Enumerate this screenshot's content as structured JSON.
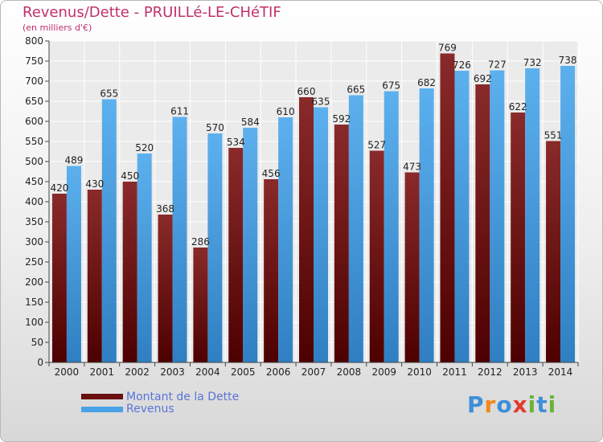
{
  "title": "Revenus/Dette - PRUILLé-LE-CHéTIF",
  "unit_label": "(en milliers d'€)",
  "brand": {
    "name": "Proxiti",
    "letters": [
      "P",
      "r",
      "o",
      "x",
      "i",
      "t",
      "i"
    ],
    "letter_colors": [
      "#3d8fd8",
      "#f08a1c",
      "#3d8fd8",
      "#e23b2e",
      "#6bb338",
      "#3d8fd8",
      "#6bb338"
    ]
  },
  "colors": {
    "dette": "#7a1a1a",
    "revenus": "#4aa3e6",
    "title": "#c0306a",
    "legend_text": "#5a74d8"
  },
  "chart_data": {
    "type": "bar",
    "categories": [
      "2000",
      "2001",
      "2002",
      "2003",
      "2004",
      "2005",
      "2006",
      "2007",
      "2008",
      "2009",
      "2010",
      "2011",
      "2012",
      "2013",
      "2014"
    ],
    "series": [
      {
        "name": "Montant de la Dette",
        "values": [
          420,
          430,
          450,
          368,
          286,
          534,
          456,
          660,
          592,
          527,
          473,
          769,
          692,
          622,
          551
        ]
      },
      {
        "name": "Revenus",
        "values": [
          489,
          655,
          520,
          611,
          570,
          584,
          610,
          635,
          665,
          675,
          682,
          726,
          727,
          732,
          738
        ]
      }
    ],
    "ylim": [
      0,
      800
    ],
    "yticks": [
      0,
      50,
      100,
      150,
      200,
      250,
      300,
      350,
      400,
      450,
      500,
      550,
      600,
      650,
      700,
      750,
      800
    ],
    "grid": true,
    "legend": "bottom-left"
  }
}
